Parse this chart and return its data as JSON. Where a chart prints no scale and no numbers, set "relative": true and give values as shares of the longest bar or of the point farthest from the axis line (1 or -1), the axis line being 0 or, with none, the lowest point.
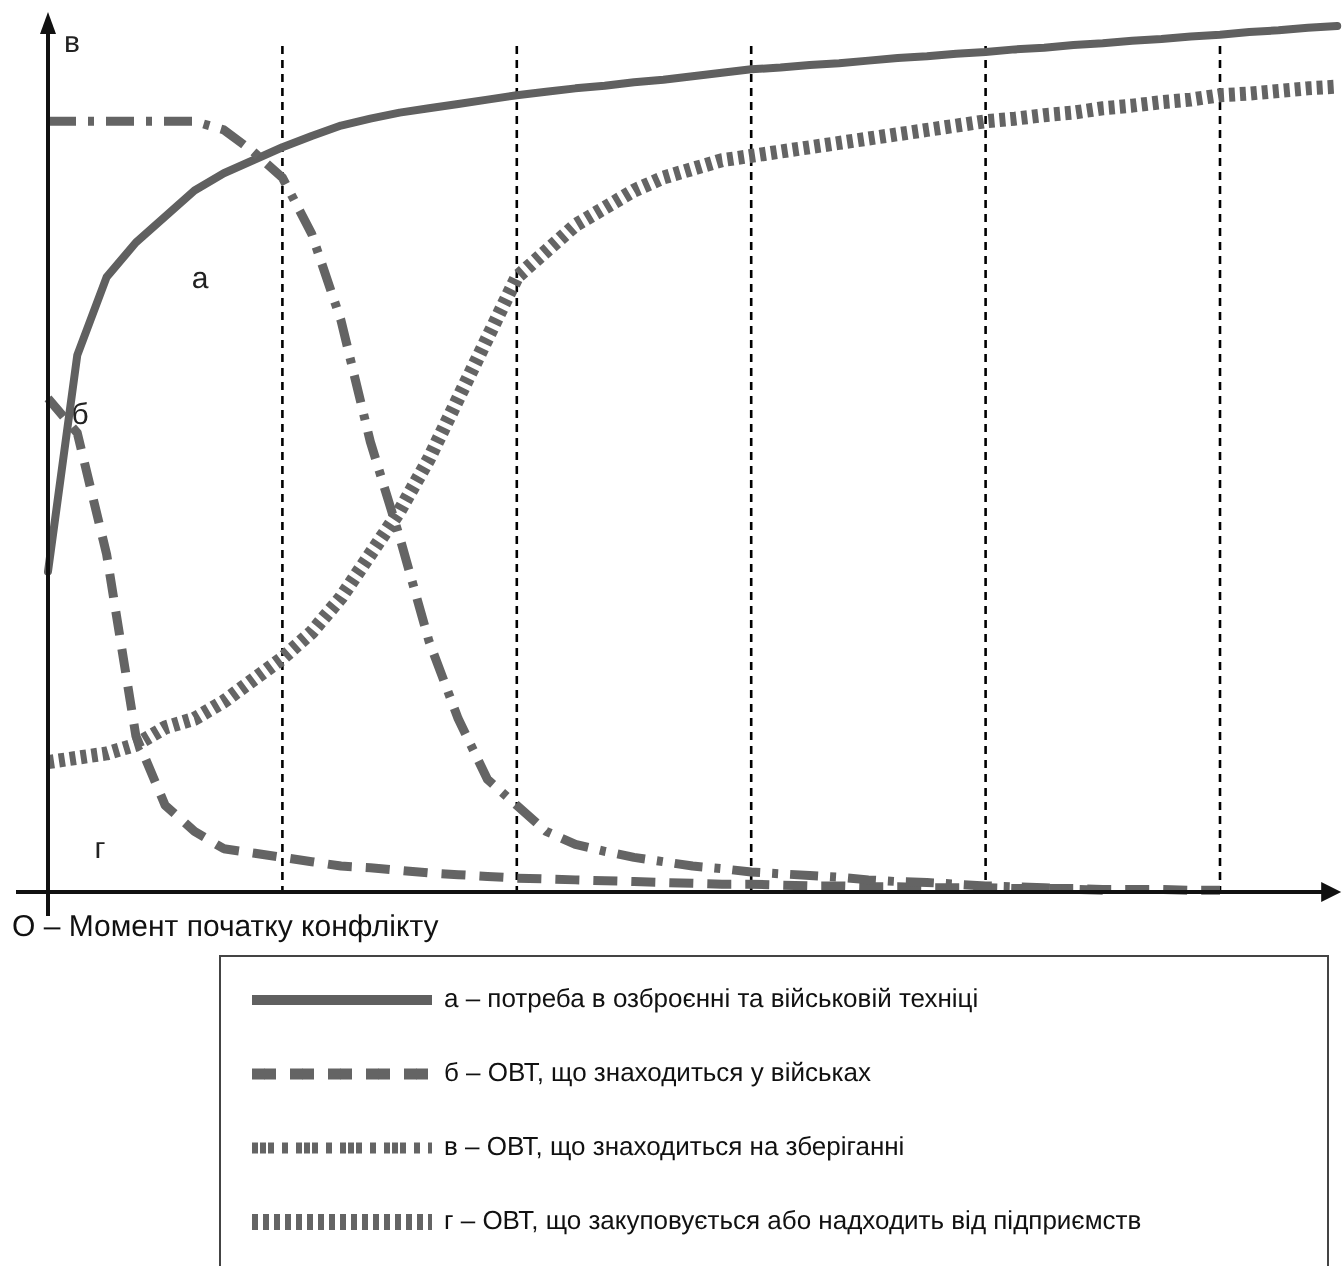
{
  "chart_data": {
    "type": "line",
    "relative": true,
    "xlabel": "О – Момент початку конфлікту",
    "legend": "bottom",
    "marker": "none",
    "grid": "x",
    "categories": [
      null,
      null,
      null,
      null,
      null,
      null,
      null,
      null,
      null,
      null,
      null,
      null,
      null,
      null,
      null,
      null,
      null,
      null,
      null,
      null,
      null,
      null,
      null,
      null,
      null,
      null,
      null,
      null,
      null,
      null,
      null,
      null,
      null,
      null,
      null,
      null,
      null,
      null,
      null,
      null,
      null,
      null,
      null,
      null,
      null
    ],
    "series": [
      {
        "name": "а – потреба в озброєнні та військовій техніці",
        "color": "#606060",
        "line_style": "solid",
        "values": [
          0.37,
          0.62,
          0.71,
          0.75,
          0.78,
          0.81,
          0.83,
          0.845,
          0.86,
          0.873,
          0.885,
          0.893,
          0.9,
          0.905,
          0.91,
          0.915,
          0.92,
          0.924,
          0.928,
          0.931,
          0.935,
          0.938,
          0.942,
          0.946,
          0.95,
          0.952,
          0.955,
          0.957,
          0.96,
          0.963,
          0.965,
          0.968,
          0.97,
          0.973,
          0.975,
          0.978,
          0.98,
          0.983,
          0.985,
          0.988,
          0.99,
          0.993,
          0.995,
          0.998,
          1.0
        ]
      },
      {
        "name": "б – ОВТ, що знаходиться у військах",
        "color": "#646464",
        "line_style": "dashed",
        "values": [
          0.57,
          0.53,
          0.39,
          0.18,
          0.1,
          0.07,
          0.05,
          0.045,
          0.04,
          0.035,
          0.03,
          0.028,
          0.025,
          0.022,
          0.02,
          0.018,
          0.016,
          0.015,
          0.014,
          0.013,
          0.012,
          0.011,
          0.01,
          0.009,
          0.009,
          0.008,
          0.007,
          0.007,
          0.006,
          0.006,
          0.005,
          0.005,
          0.005,
          0.004,
          0.004,
          0.004,
          0.003,
          0.003,
          0.003,
          0.002,
          0.002,
          null,
          null,
          null,
          null
        ]
      },
      {
        "name": "в – ОВТ, що знаходиться на зберіганні",
        "color": "#646464",
        "line_style": "dashdot",
        "values": [
          0.89,
          0.89,
          0.89,
          0.89,
          0.89,
          0.89,
          0.88,
          0.855,
          0.825,
          0.76,
          0.66,
          0.52,
          0.41,
          0.29,
          0.2,
          0.13,
          0.1,
          0.07,
          0.055,
          0.047,
          0.04,
          0.035,
          0.03,
          0.027,
          0.023,
          0.021,
          0.019,
          0.017,
          0.014,
          0.012,
          0.011,
          0.009,
          0.007,
          0.006,
          0.005,
          0.003,
          0.002,
          null,
          null,
          null,
          null,
          null,
          null,
          null,
          null
        ]
      },
      {
        "name": "г – ОВТ, що закуповується або надходить від підприємств",
        "color": "#646464",
        "line_style": "dotted",
        "values": [
          0.15,
          0.155,
          0.16,
          0.17,
          0.19,
          0.2,
          0.22,
          0.245,
          0.27,
          0.3,
          0.34,
          0.39,
          0.44,
          0.5,
          0.57,
          0.64,
          0.71,
          0.74,
          0.77,
          0.79,
          0.81,
          0.825,
          0.835,
          0.845,
          0.85,
          0.855,
          0.86,
          0.865,
          0.87,
          0.875,
          0.88,
          0.885,
          0.89,
          0.893,
          0.897,
          0.9,
          0.905,
          0.908,
          0.912,
          0.915,
          0.92,
          0.922,
          0.925,
          0.928,
          0.93
        ]
      }
    ],
    "annotations": [
      "в",
      "а",
      "б",
      "г"
    ]
  }
}
